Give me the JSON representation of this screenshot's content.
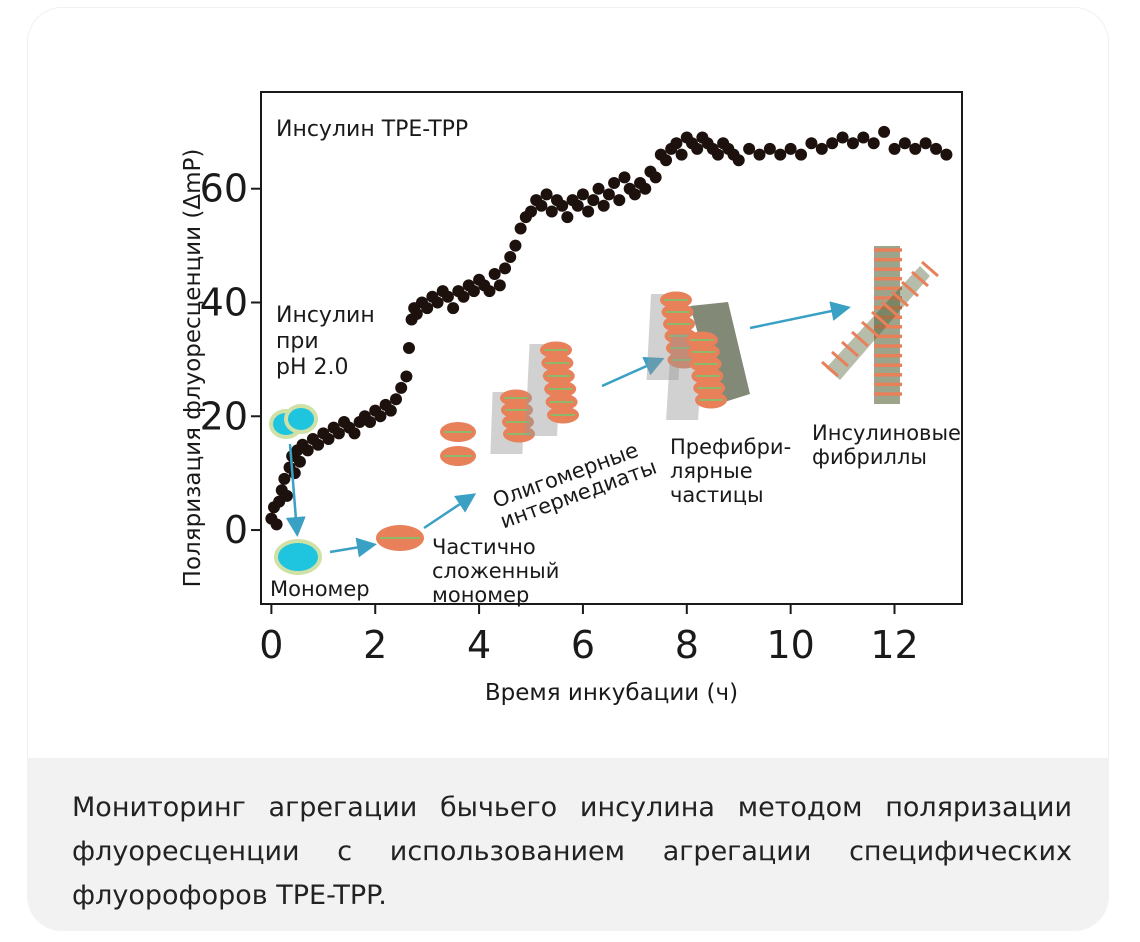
{
  "chart_data": {
    "type": "scatter",
    "title": "Инсулин TPE-TPP",
    "xlabel": "Время инкубации (ч)",
    "ylabel": "Поляризация флуоресценции (ΔmP)",
    "xlim": [
      -0.2,
      13.3
    ],
    "ylim": [
      -13,
      77
    ],
    "x_ticks": [
      "0",
      "2",
      "4",
      "6",
      "8",
      "10",
      "12"
    ],
    "x_tick_values": [
      0,
      2,
      4,
      6,
      8,
      10,
      12
    ],
    "y_ticks": [
      "0",
      "20",
      "40",
      "60"
    ],
    "y_tick_values": [
      0,
      20,
      40,
      60
    ],
    "grid": false,
    "series": [
      {
        "marker_color": "#1d110d",
        "points": [
          [
            0.0,
            2
          ],
          [
            0.05,
            4
          ],
          [
            0.1,
            1
          ],
          [
            0.15,
            5
          ],
          [
            0.2,
            7
          ],
          [
            0.25,
            9
          ],
          [
            0.3,
            6
          ],
          [
            0.35,
            11
          ],
          [
            0.4,
            13
          ],
          [
            0.45,
            10
          ],
          [
            0.5,
            14
          ],
          [
            0.55,
            12
          ],
          [
            0.6,
            15
          ],
          [
            0.7,
            14
          ],
          [
            0.8,
            16
          ],
          [
            0.9,
            15
          ],
          [
            1.0,
            17
          ],
          [
            1.1,
            16
          ],
          [
            1.2,
            18
          ],
          [
            1.3,
            17
          ],
          [
            1.4,
            19
          ],
          [
            1.5,
            18
          ],
          [
            1.6,
            17
          ],
          [
            1.7,
            19
          ],
          [
            1.8,
            20
          ],
          [
            1.9,
            19
          ],
          [
            2.0,
            21
          ],
          [
            2.1,
            20
          ],
          [
            2.2,
            22
          ],
          [
            2.3,
            21
          ],
          [
            2.4,
            23
          ],
          [
            2.5,
            25
          ],
          [
            2.6,
            27
          ],
          [
            2.65,
            32
          ],
          [
            2.7,
            37
          ],
          [
            2.75,
            39
          ],
          [
            2.8,
            38
          ],
          [
            2.9,
            40
          ],
          [
            3.0,
            39
          ],
          [
            3.1,
            41
          ],
          [
            3.2,
            40
          ],
          [
            3.3,
            42
          ],
          [
            3.4,
            41
          ],
          [
            3.5,
            39
          ],
          [
            3.6,
            42
          ],
          [
            3.7,
            41
          ],
          [
            3.8,
            43
          ],
          [
            3.9,
            42
          ],
          [
            4.0,
            44
          ],
          [
            4.1,
            43
          ],
          [
            4.2,
            42
          ],
          [
            4.3,
            45
          ],
          [
            4.4,
            43
          ],
          [
            4.5,
            46
          ],
          [
            4.6,
            48
          ],
          [
            4.7,
            50
          ],
          [
            4.8,
            53
          ],
          [
            4.9,
            55
          ],
          [
            5.0,
            56
          ],
          [
            5.1,
            58
          ],
          [
            5.2,
            57
          ],
          [
            5.3,
            59
          ],
          [
            5.4,
            56
          ],
          [
            5.5,
            58
          ],
          [
            5.6,
            57
          ],
          [
            5.7,
            55
          ],
          [
            5.8,
            58
          ],
          [
            5.9,
            57
          ],
          [
            6.0,
            59
          ],
          [
            6.1,
            56
          ],
          [
            6.2,
            58
          ],
          [
            6.3,
            60
          ],
          [
            6.4,
            57
          ],
          [
            6.5,
            59
          ],
          [
            6.6,
            61
          ],
          [
            6.7,
            58
          ],
          [
            6.8,
            62
          ],
          [
            6.9,
            60
          ],
          [
            7.0,
            59
          ],
          [
            7.1,
            61
          ],
          [
            7.2,
            60
          ],
          [
            7.3,
            63
          ],
          [
            7.4,
            62
          ],
          [
            7.5,
            66
          ],
          [
            7.6,
            65
          ],
          [
            7.7,
            67
          ],
          [
            7.8,
            68
          ],
          [
            7.9,
            66
          ],
          [
            8.0,
            69
          ],
          [
            8.1,
            68
          ],
          [
            8.2,
            67
          ],
          [
            8.3,
            69
          ],
          [
            8.4,
            68
          ],
          [
            8.5,
            67
          ],
          [
            8.6,
            66
          ],
          [
            8.7,
            68
          ],
          [
            8.8,
            67
          ],
          [
            8.9,
            66
          ],
          [
            9.0,
            65
          ],
          [
            9.2,
            67
          ],
          [
            9.4,
            66
          ],
          [
            9.6,
            67
          ],
          [
            9.8,
            66
          ],
          [
            10.0,
            67
          ],
          [
            10.2,
            66
          ],
          [
            10.4,
            68
          ],
          [
            10.6,
            67
          ],
          [
            10.8,
            68
          ],
          [
            11.0,
            69
          ],
          [
            11.2,
            68
          ],
          [
            11.4,
            69
          ],
          [
            11.6,
            68
          ],
          [
            11.8,
            70
          ],
          [
            12.0,
            67
          ],
          [
            12.2,
            68
          ],
          [
            12.4,
            67
          ],
          [
            12.6,
            68
          ],
          [
            12.8,
            67
          ],
          [
            13.0,
            66
          ]
        ]
      }
    ],
    "annotations": {
      "ph_label": [
        "Инсулин",
        "при",
        "pH 2.0"
      ],
      "monomer": "Мономер",
      "partially_folded": [
        "Частично",
        "сложенный",
        "мономер"
      ],
      "oligomeric": [
        "Олигомерные",
        "интермедиаты"
      ],
      "prefibrillar": [
        "Префибри-",
        "лярные",
        "частицы"
      ],
      "fibrils": [
        "Инсулиновые",
        "фибриллы"
      ]
    },
    "colors": {
      "marker": "#1d110d",
      "monomer_fill": "#1fc4de",
      "monomer_ring": "#cfe1a6",
      "particle": "#e8805a",
      "particle_band": "#8fb86a",
      "arrow": "#3aa0c4"
    }
  },
  "caption": "Мониторинг агрегации бычьего инсулина методом поляризации флуоресценции с использованием агрегации специфических флуорофоров TPE-TPP."
}
